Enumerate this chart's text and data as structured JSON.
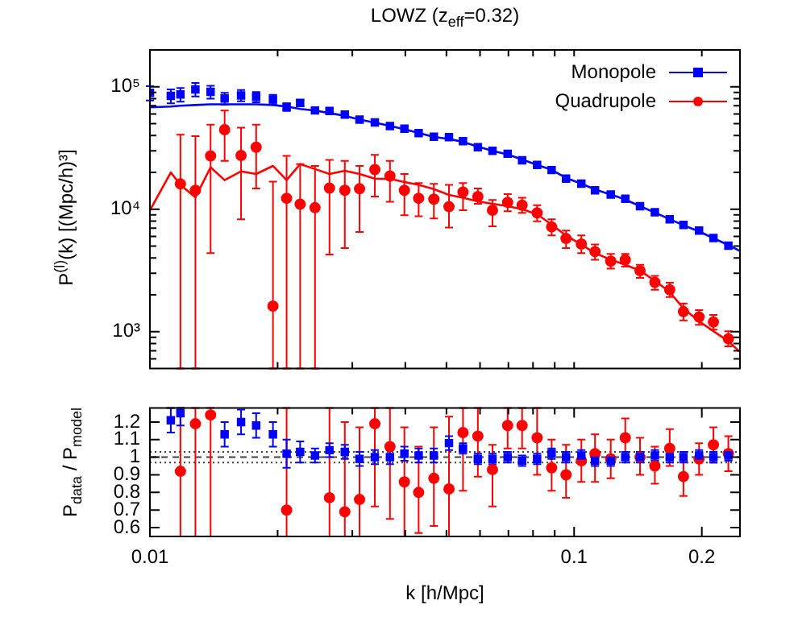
{
  "chart_data": [
    {
      "type": "scatter",
      "title": "LOWZ (z$_{eff}$=0.32)",
      "ylabel": "P$^{(l)}$(k) [(Mpc/h)³]",
      "log": "xy",
      "legend": "top right",
      "tick_labels": "y",
      "xlim": [
        0.01,
        0.246
      ],
      "ylim": [
        500,
        200000
      ],
      "xticks": [
        {
          "value": 0.01,
          "label": null
        },
        {
          "value": 0.02,
          "label": null
        },
        {
          "value": 0.03,
          "label": null
        },
        {
          "value": 0.04,
          "label": null
        },
        {
          "value": 0.05,
          "label": null
        },
        {
          "value": 0.06,
          "label": null
        },
        {
          "value": 0.07,
          "label": null
        },
        {
          "value": 0.08,
          "label": null
        },
        {
          "value": 0.09,
          "label": null
        },
        {
          "value": 0.1,
          "label": null
        },
        {
          "value": 0.2,
          "label": null
        }
      ],
      "yticks": [
        {
          "value": 600,
          "label": null
        },
        {
          "value": 700,
          "label": null
        },
        {
          "value": 800,
          "label": null
        },
        {
          "value": 900,
          "label": null
        },
        {
          "value": 1000,
          "label": "10³"
        },
        {
          "value": 2000,
          "label": null
        },
        {
          "value": 3000,
          "label": null
        },
        {
          "value": 4000,
          "label": null
        },
        {
          "value": 5000,
          "label": null
        },
        {
          "value": 6000,
          "label": null
        },
        {
          "value": 7000,
          "label": null
        },
        {
          "value": 8000,
          "label": null
        },
        {
          "value": 9000,
          "label": null
        },
        {
          "value": 10000,
          "label": "10⁴"
        },
        {
          "value": 20000,
          "label": null
        },
        {
          "value": 30000,
          "label": null
        },
        {
          "value": 40000,
          "label": null
        },
        {
          "value": 50000,
          "label": null
        },
        {
          "value": 60000,
          "label": null
        },
        {
          "value": 70000,
          "label": null
        },
        {
          "value": 80000,
          "label": null
        },
        {
          "value": 90000,
          "label": null
        },
        {
          "value": 100000,
          "label": "10⁵"
        },
        {
          "value": 200000,
          "label": null
        }
      ],
      "x": [
        0.01,
        0.0112,
        0.0118,
        0.0128,
        0.0139,
        0.015,
        0.0164,
        0.0178,
        0.0195,
        0.021,
        0.0226,
        0.0245,
        0.0265,
        0.0288,
        0.0312,
        0.0339,
        0.0368,
        0.0398,
        0.043,
        0.0467,
        0.0507,
        0.0547,
        0.0593,
        0.0642,
        0.0697,
        0.0754,
        0.0818,
        0.0885,
        0.0957,
        0.104,
        0.112,
        0.122,
        0.132,
        0.143,
        0.155,
        0.168,
        0.181,
        0.197,
        0.213,
        0.231
      ],
      "series": [
        {
          "type": "line",
          "color": "#0000ff",
          "marker": "none",
          "x": [
            0.01,
            0.0112,
            0.0118,
            0.0128,
            0.0139,
            0.015,
            0.0164,
            0.0178,
            0.0195,
            0.021,
            0.0226,
            0.0245,
            0.0265,
            0.0288,
            0.0312,
            0.0339,
            0.0368,
            0.0398,
            0.043,
            0.0467,
            0.0507,
            0.0547,
            0.0593,
            0.0642,
            0.0697,
            0.0754,
            0.0818,
            0.0885,
            0.0957,
            0.104,
            0.112,
            0.122,
            0.132,
            0.143,
            0.155,
            0.168,
            0.181,
            0.197,
            0.213,
            0.231,
            0.245
          ],
          "values": [
            68000,
            69000,
            70000,
            71000,
            72000,
            72000,
            72000,
            72000,
            71000,
            69000,
            66000,
            64000,
            61000,
            58000,
            54000,
            51000,
            48000,
            45000,
            42000,
            39000,
            37500,
            35500,
            32500,
            30000,
            28000,
            25500,
            23000,
            21000,
            18000,
            16200,
            14500,
            13200,
            12000,
            10600,
            9400,
            8300,
            7400,
            6600,
            5800,
            5100,
            4600
          ]
        },
        {
          "type": "line",
          "color": "#ff0000",
          "marker": "none",
          "x": [
            0.01,
            0.0112,
            0.0118,
            0.0128,
            0.0139,
            0.015,
            0.0164,
            0.0178,
            0.0195,
            0.021,
            0.0226,
            0.0245,
            0.0265,
            0.0288,
            0.0312,
            0.0339,
            0.0368,
            0.0398,
            0.043,
            0.0467,
            0.0507,
            0.0547,
            0.0593,
            0.0642,
            0.0697,
            0.0754,
            0.0818,
            0.0885,
            0.0957,
            0.104,
            0.112,
            0.122,
            0.132,
            0.143,
            0.155,
            0.168,
            0.181,
            0.197,
            0.213,
            0.231,
            0.245
          ],
          "values": [
            9800,
            20000,
            15800,
            12500,
            22000,
            17300,
            20400,
            19400,
            22600,
            17300,
            23400,
            21300,
            19400,
            20600,
            19400,
            17800,
            17700,
            16700,
            15800,
            14600,
            13100,
            12400,
            11600,
            11100,
            10600,
            10000,
            9100,
            7500,
            6100,
            5150,
            4390,
            3870,
            3520,
            3150,
            2610,
            2110,
            1550,
            1220,
            1010,
            836,
            692
          ]
        },
        {
          "name": "Monopole",
          "type": "scatter",
          "color": "#0000ff",
          "marker": "square",
          "values": [
            89300,
            84400,
            86600,
            95300,
            91000,
            80400,
            85100,
            82700,
            78900,
            68400,
            73800,
            64100,
            63500,
            59400,
            54000,
            51100,
            47800,
            45500,
            41800,
            39100,
            38800,
            36000,
            32100,
            30000,
            28400,
            25100,
            23000,
            20900,
            17800,
            16200,
            14300,
            13200,
            12200,
            10600,
            9450,
            8270,
            7450,
            6710,
            5820,
            5050
          ],
          "errors": [
            12000,
            11000,
            11000,
            12000,
            11000,
            9000,
            9000,
            8000,
            7000,
            5000,
            4000,
            3000,
            null,
            null,
            null,
            null,
            null,
            null,
            null,
            null,
            null,
            null,
            null,
            null,
            null,
            null,
            null,
            null,
            null,
            null,
            null,
            null,
            null,
            null,
            null,
            null,
            null,
            null,
            null,
            null
          ]
        },
        {
          "name": "Quadrupole",
          "type": "scatter",
          "color": "#ff0000",
          "marker": "circle",
          "values": [
            null,
            null,
            16100,
            14300,
            27300,
            44700,
            27500,
            32100,
            1620,
            12300,
            11000,
            10300,
            14900,
            14300,
            14700,
            21100,
            18700,
            14300,
            12300,
            12100,
            10500,
            13800,
            12700,
            9810,
            11400,
            10800,
            9350,
            7180,
            5770,
            5200,
            4510,
            3770,
            3870,
            3150,
            2530,
            2200,
            1460,
            1320,
            1200,
            875
          ],
          "errors": [
            null,
            null,
            [
              500,
              40600
            ],
            [
              500,
              39500
            ],
            [
              4390,
              49100
            ],
            [
              24800,
              64100
            ],
            [
              8270,
              46400
            ],
            [
              14800,
              49100
            ],
            [
              500,
              16800
            ],
            [
              500,
              27300
            ],
            [
              500,
              23400
            ],
            [
              500,
              22600
            ],
            [
              4270,
              25300
            ],
            [
              4820,
              24800
            ],
            [
              6530,
              22600
            ],
            [
              12700,
              27800
            ],
            [
              11500,
              24800
            ],
            [
              8930,
              19400
            ],
            [
              8760,
              16400
            ],
            [
              8400,
              16100
            ],
            [
              7100,
              15800
            ],
            [
              9810,
              16400
            ],
            [
              11100,
              14800
            ],
            [
              7250,
              11900
            ],
            [
              9640,
              13300
            ],
            [
              9350,
              12400
            ],
            [
              7960,
              10800
            ],
            [
              6110,
              8270
            ],
            [
              4820,
              6710
            ],
            [
              4390,
              6110
            ],
            [
              3870,
              5150
            ],
            [
              3270,
              4310
            ],
            [
              3400,
              4310
            ],
            [
              2750,
              3520
            ],
            [
              2200,
              2860
            ],
            [
              1920,
              2510
            ],
            [
              1240,
              1700
            ],
            [
              1140,
              1500
            ],
            [
              1040,
              1370
            ],
            [
              760,
              1010
            ]
          ]
        }
      ]
    },
    {
      "type": "scatter",
      "xlabel": "k [h/Mpc]",
      "ylabel": "P$_{data}$ / P$_{model}$",
      "log": "x",
      "xlim": [
        0.01,
        0.246
      ],
      "ylim": [
        0.55,
        1.28
      ],
      "xticks": [
        0.01,
        {
          "value": 0.02,
          "label": null
        },
        {
          "value": 0.03,
          "label": null
        },
        {
          "value": 0.04,
          "label": null
        },
        {
          "value": 0.05,
          "label": null
        },
        {
          "value": 0.06,
          "label": null
        },
        {
          "value": 0.07,
          "label": null
        },
        {
          "value": 0.08,
          "label": null
        },
        {
          "value": 0.09,
          "label": null
        },
        0.1,
        0.2
      ],
      "yticks": [
        0.6,
        0.7,
        0.8,
        0.9,
        1,
        1.1,
        1.2
      ],
      "ref_lines": [
        {
          "axis": "y",
          "value": 1.03,
          "color": "#404040",
          "line_style": "dotted"
        },
        {
          "axis": "y",
          "value": 1,
          "color": "#404040",
          "line_style": "dashed"
        },
        {
          "axis": "y",
          "value": 0.97,
          "color": "#404040",
          "line_style": "dotted"
        }
      ],
      "x": [
        0.0112,
        0.0118,
        0.0128,
        0.0139,
        0.015,
        0.0164,
        0.0178,
        0.0195,
        0.021,
        0.0226,
        0.0245,
        0.0265,
        0.0288,
        0.0312,
        0.0339,
        0.0368,
        0.0398,
        0.043,
        0.0467,
        0.0507,
        0.0547,
        0.0593,
        0.0642,
        0.0697,
        0.0754,
        0.0818,
        0.0885,
        0.0957,
        0.104,
        0.112,
        0.122,
        0.132,
        0.143,
        0.155,
        0.168,
        0.181,
        0.197,
        0.213,
        0.231
      ],
      "series": [
        {
          "type": "scatter",
          "color": "#ff0000",
          "marker": "circle",
          "values": [
            null,
            0.92,
            1.19,
            1.24,
            null,
            null,
            null,
            null,
            0.7,
            null,
            null,
            0.77,
            0.69,
            0.76,
            1.19,
            1.06,
            0.86,
            0.8,
            0.88,
            0.82,
            1.14,
            1.12,
            0.93,
            1.18,
            1.18,
            1.11,
            0.94,
            0.9,
            0.98,
            1.02,
            0.99,
            1.11,
            1.0,
            0.95,
            1.05,
            0.89,
            0.99,
            1.07,
            1.02
          ],
          "errors": [
            null,
            [
              0.55,
              1.28
            ],
            [
              0.55,
              1.28
            ],
            [
              0.55,
              1.28
            ],
            null,
            null,
            null,
            null,
            [
              0.55,
              1.28
            ],
            null,
            null,
            [
              0.55,
              1.28
            ],
            [
              0.55,
              1.2
            ],
            [
              0.55,
              1.17
            ],
            [
              0.72,
              1.28
            ],
            [
              0.65,
              1.28
            ],
            [
              0.55,
              1.17
            ],
            [
              0.57,
              1.06
            ],
            [
              0.61,
              1.17
            ],
            [
              0.55,
              1.23
            ],
            [
              0.81,
              1.28
            ],
            [
              0.89,
              1.28
            ],
            [
              0.72,
              1.07
            ],
            [
              1.05,
              1.28
            ],
            [
              1.05,
              1.28
            ],
            [
              0.9,
              1.28
            ],
            [
              0.81,
              1.1
            ],
            [
              0.77,
              1.07
            ],
            [
              0.86,
              1.1
            ],
            [
              0.86,
              1.13
            ],
            [
              0.88,
              1.1
            ],
            [
              1.0,
              1.22
            ],
            [
              0.9,
              1.11
            ],
            [
              0.85,
              1.06
            ],
            [
              0.95,
              1.16
            ],
            [
              0.78,
              0.98
            ],
            [
              0.9,
              1.08
            ],
            [
              0.97,
              1.17
            ],
            [
              0.92,
              1.12
            ]
          ]
        },
        {
          "type": "scatter",
          "color": "#0000ff",
          "marker": "square",
          "values": [
            1.21,
            1.25,
            null,
            null,
            1.13,
            1.2,
            1.18,
            1.13,
            1.02,
            1.03,
            1.01,
            1.04,
            1.03,
            0.99,
            1.0,
            1.0,
            1.02,
            1.01,
            1.01,
            1.08,
            1.05,
            0.99,
            0.99,
            1.0,
            0.98,
            0.99,
            1.02,
            1.0,
            1.01,
            0.98,
            0.98,
            1.0,
            1.0,
            1.01,
            1.0,
            1.0,
            1.01,
            1.0,
            1.01
          ],
          "errors": [
            [
              1.14,
              1.28
            ],
            [
              1.18,
              1.28
            ],
            null,
            null,
            0.07,
            0.07,
            0.07,
            0.07,
            0.08,
            0.06,
            0.04,
            0.04,
            0.04,
            0.04,
            0.04,
            0.04,
            0.04,
            0.04,
            0.04,
            0.04,
            0.03,
            0.03,
            0.03,
            0.03,
            0.03,
            0.03,
            0.03,
            0.03,
            0.03,
            0.03,
            0.03,
            0.03,
            0.03,
            0.03,
            0.03,
            0.03,
            0.03,
            0.03,
            0.03
          ]
        }
      ]
    }
  ]
}
